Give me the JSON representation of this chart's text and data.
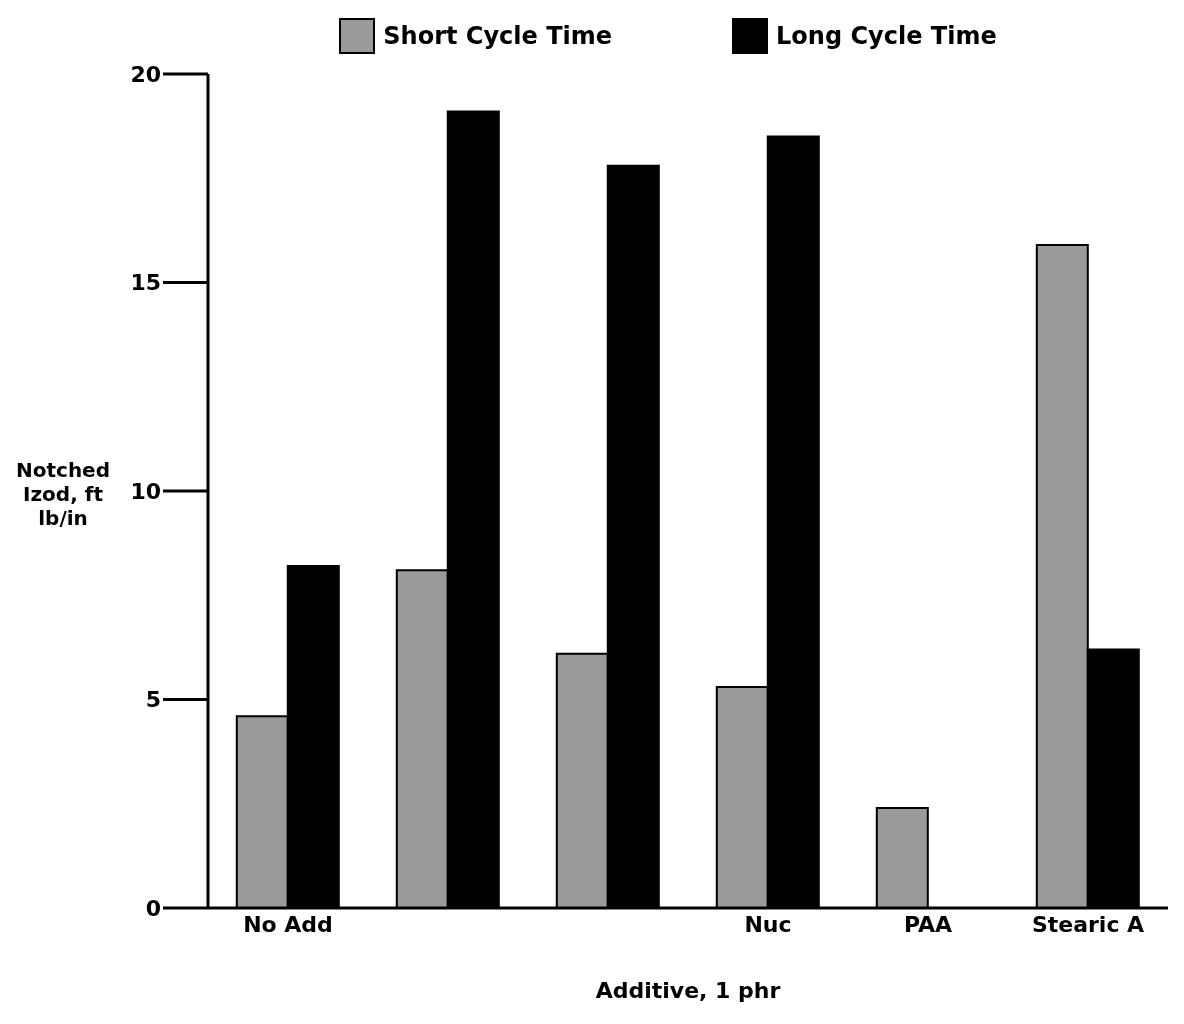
{
  "chart_data": {
    "type": "bar",
    "xlabel": "Additive, 1 phr",
    "ylabel": "Notched Izod, ft lb/in",
    "categories": [
      "No Add",
      null,
      null,
      "Nuc",
      "PAA",
      "Stearic A"
    ],
    "series": [
      {
        "name": "Short Cycle Time",
        "color": "#9a9a9a",
        "values": [
          4.6,
          8.1,
          6.1,
          5.3,
          2.4,
          15.9
        ]
      },
      {
        "name": "Long Cycle Time",
        "color": "#000000",
        "values": [
          8.2,
          19.1,
          17.8,
          18.5,
          null,
          6.2
        ]
      }
    ],
    "ylim": [
      0,
      20
    ],
    "yticks": [
      0,
      5,
      10,
      15,
      20
    ],
    "legend": "top",
    "grid": false
  }
}
